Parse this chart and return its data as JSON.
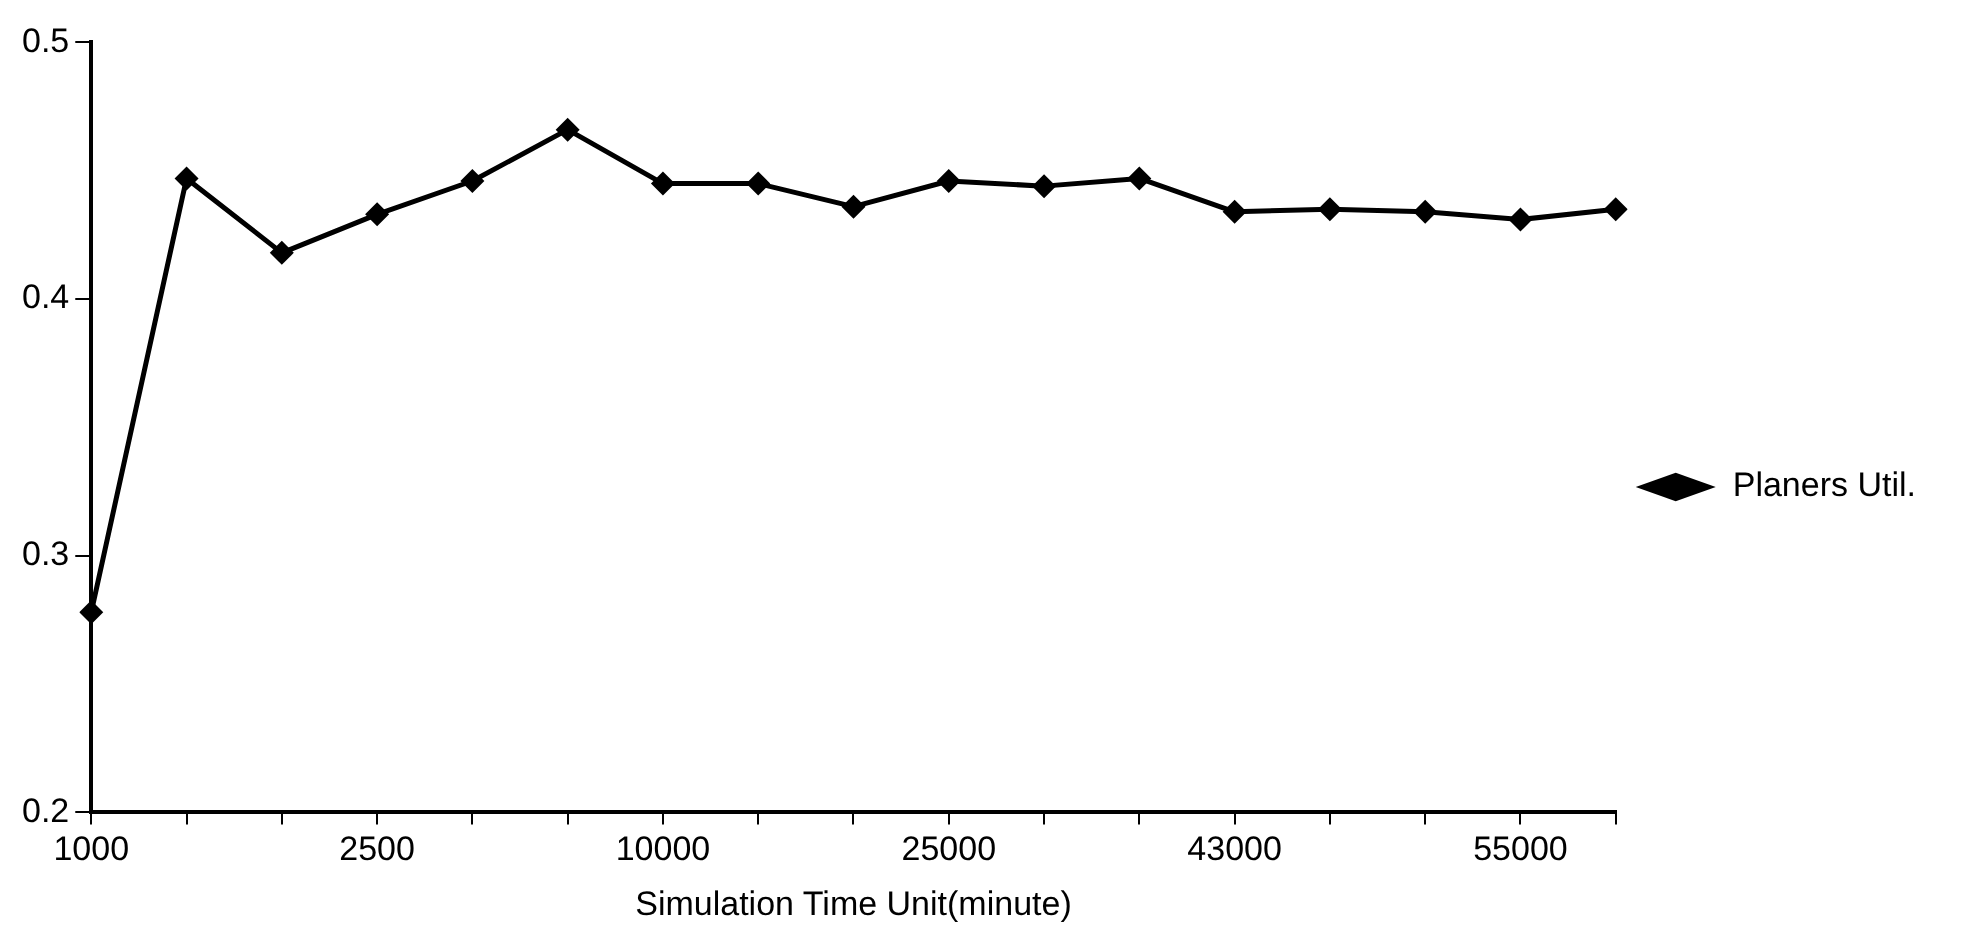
{
  "chart_data": {
    "type": "line",
    "xlabel": "Simulation Time Unit(minute)",
    "categories": [
      "1000",
      null,
      null,
      "2500",
      null,
      null,
      "10000",
      null,
      null,
      "25000",
      null,
      null,
      "43000",
      null,
      null,
      "55000",
      null
    ],
    "series": [
      {
        "name": "Planers Util.",
        "color": "#000000",
        "values": [
          0.278,
          0.447,
          0.418,
          0.433,
          0.446,
          0.466,
          0.445,
          0.445,
          0.436,
          0.446,
          0.444,
          0.447,
          0.434,
          0.435,
          0.434,
          0.431,
          0.435
        ]
      }
    ],
    "ylim": [
      0.2,
      0.5
    ],
    "yticks": [
      0.2,
      0.3,
      0.4,
      0.5
    ],
    "grid": false,
    "legend": "right",
    "marker": "diamond",
    "line_style": "solid"
  }
}
